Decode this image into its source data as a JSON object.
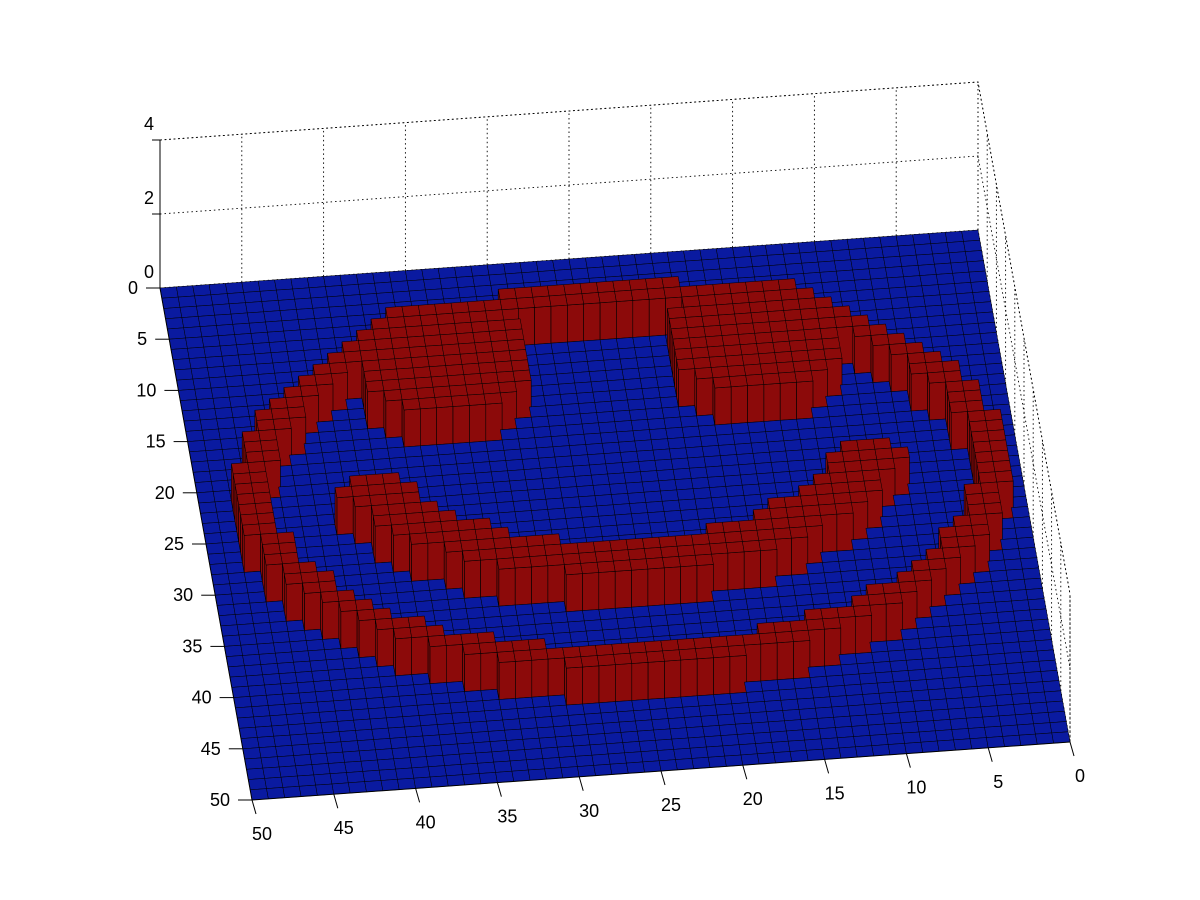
{
  "chart_data": {
    "type": "surface3d",
    "title": "",
    "xlabel": "",
    "ylabel": "",
    "zlabel": "",
    "grid": true,
    "xlim": [
      0,
      50
    ],
    "ylim": [
      0,
      50
    ],
    "zlim": [
      0,
      4
    ],
    "x_ticks": [
      "0",
      "5",
      "10",
      "15",
      "20",
      "25",
      "30",
      "35",
      "40",
      "45",
      "50"
    ],
    "y_ticks": [
      "0",
      "5",
      "10",
      "15",
      "20",
      "25",
      "30",
      "35",
      "40",
      "45",
      "50"
    ],
    "z_ticks": [
      "0",
      "2",
      "4"
    ],
    "base_value": 0,
    "raised_value": 1,
    "colors": {
      "low": "#0a1aa0",
      "high": "#8c0a0a",
      "edge": "#000000"
    },
    "grid_size": 50,
    "features": [
      {
        "name": "face-ring",
        "shape": "elliptical-ring",
        "center": [
          24.5,
          24.5
        ],
        "radii": [
          23.5,
          18.5
        ],
        "thickness": 1.6
      },
      {
        "name": "left-eye",
        "shape": "disk",
        "center": [
          34,
          12
        ],
        "radius": 5.2
      },
      {
        "name": "right-eye",
        "shape": "disk",
        "center": [
          15,
          12
        ],
        "radius": 5.2
      },
      {
        "name": "mouth",
        "shape": "arc-band",
        "center": [
          24.5,
          20
        ],
        "radii": [
          18,
          14
        ],
        "thickness": 3,
        "angle_from": 15,
        "angle_to": 165
      }
    ]
  }
}
